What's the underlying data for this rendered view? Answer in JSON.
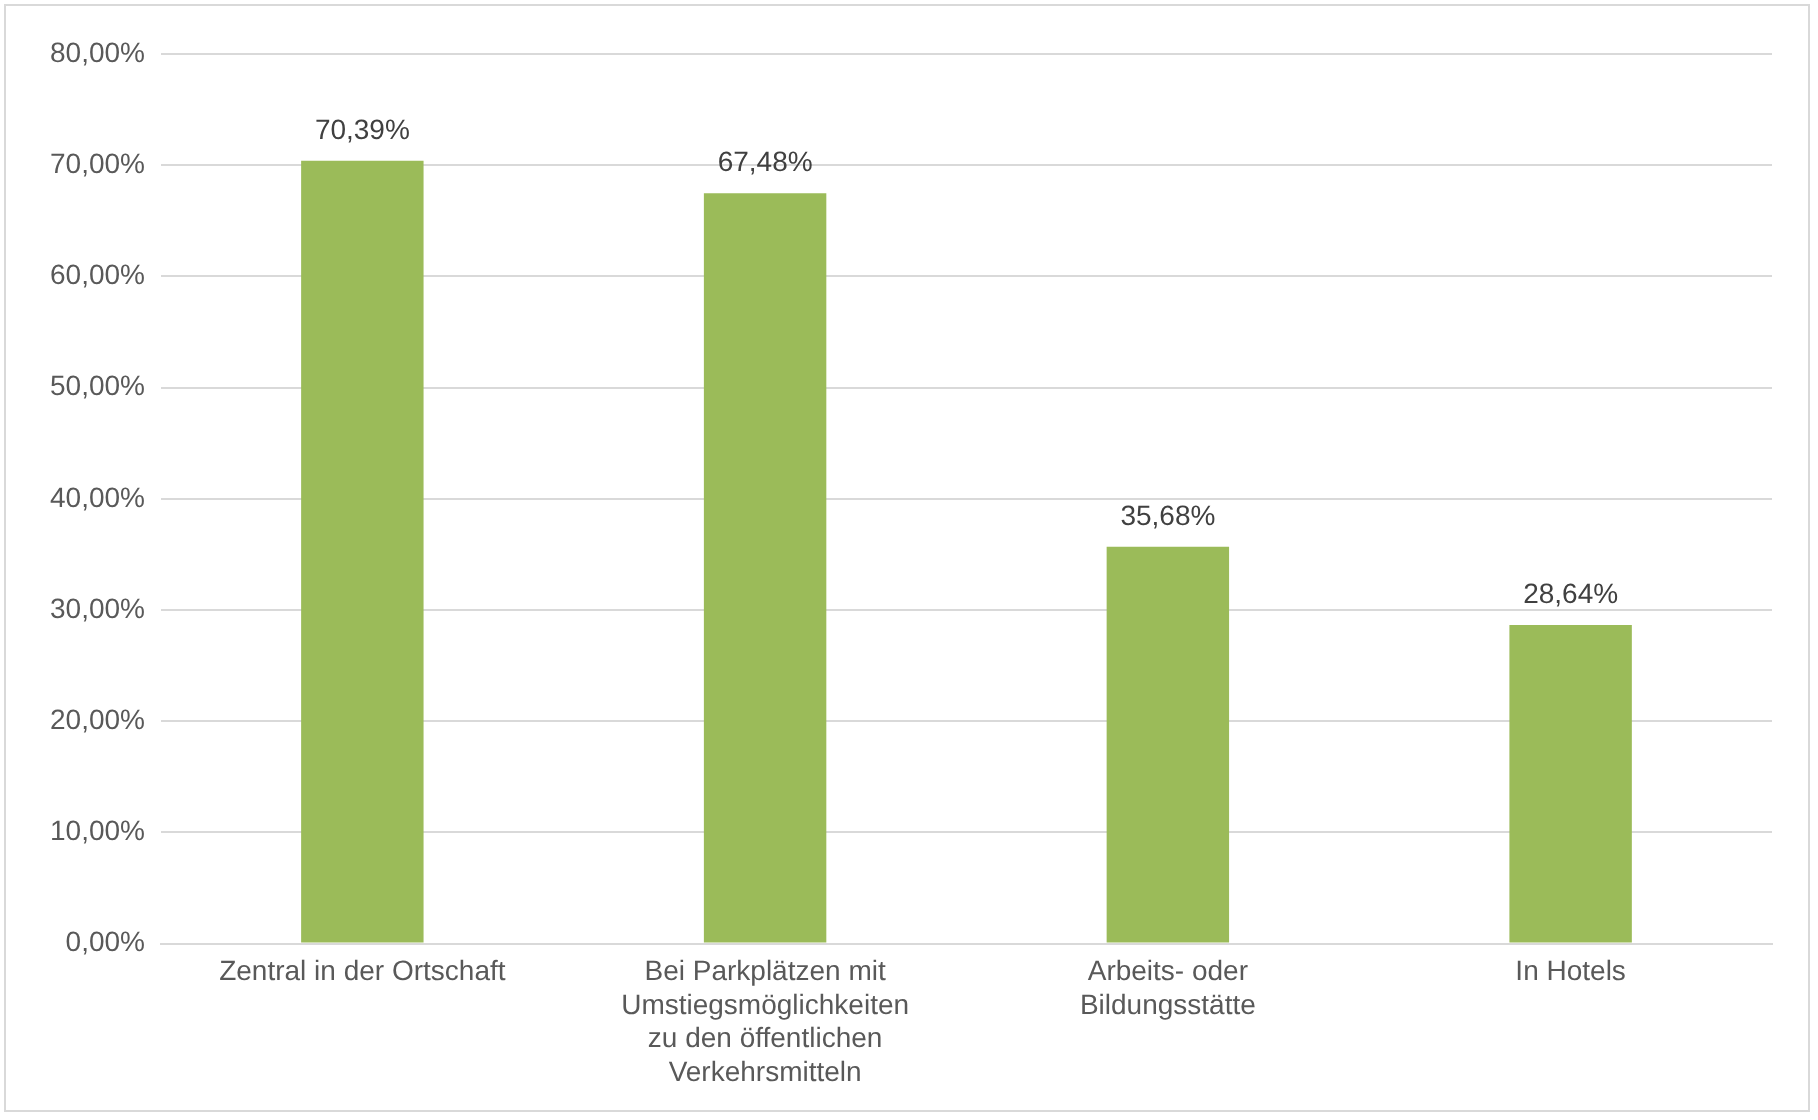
{
  "chart_data": {
    "type": "bar",
    "categories": [
      "Zentral in der Ortschaft",
      "Bei Parkplätzen mit Umstiegsmöglichkeiten zu den öffentlichen Verkehrsmitteln",
      "Arbeits- oder Bildungsstätte",
      "In Hotels"
    ],
    "values": [
      70.39,
      67.48,
      35.68,
      28.64
    ],
    "value_labels": [
      "70,39%",
      "67,48%",
      "35,68%",
      "28,64%"
    ],
    "color": "#9bbb59",
    "ylim": [
      0,
      80
    ],
    "yticks": [
      {
        "value": 0,
        "label": "0,00%"
      },
      {
        "value": 10,
        "label": "10,00%"
      },
      {
        "value": 20,
        "label": "20,00%"
      },
      {
        "value": 30,
        "label": "30,00%"
      },
      {
        "value": 40,
        "label": "40,00%"
      },
      {
        "value": 50,
        "label": "50,00%"
      },
      {
        "value": 60,
        "label": "60,00%"
      },
      {
        "value": 70,
        "label": "70,00%"
      },
      {
        "value": 80,
        "label": "80,00%"
      }
    ],
    "grid": "y",
    "legend": false
  }
}
